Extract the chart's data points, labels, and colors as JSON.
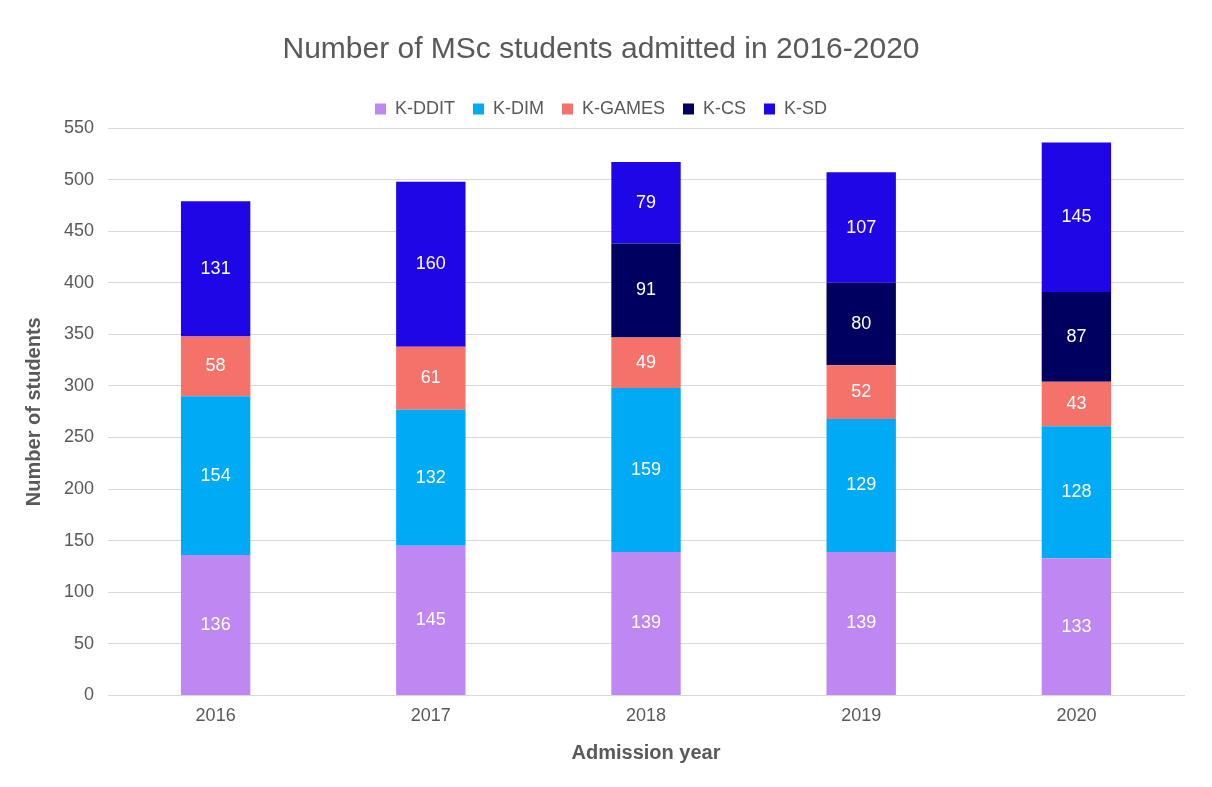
{
  "chart_data": {
    "type": "bar",
    "title": "Number of MSc students admitted in 2016-2020",
    "xlabel": "Admission year",
    "ylabel": "Number of students",
    "categories": [
      "2016",
      "2017",
      "2018",
      "2019",
      "2020"
    ],
    "series": [
      {
        "name": "K-DDIT",
        "color": "#bf87f2",
        "values": [
          136,
          145,
          139,
          139,
          133
        ]
      },
      {
        "name": "K-DIM",
        "color": "#00aaf5",
        "values": [
          154,
          132,
          159,
          129,
          128
        ]
      },
      {
        "name": "K-GAMES",
        "color": "#f4726a",
        "values": [
          58,
          61,
          49,
          52,
          43
        ]
      },
      {
        "name": "K-CS",
        "color": "#000060",
        "values": [
          null,
          null,
          91,
          80,
          87
        ]
      },
      {
        "name": "K-SD",
        "color": "#1f06e6",
        "values": [
          131,
          160,
          79,
          107,
          145
        ]
      }
    ],
    "stacked": true,
    "ylim": [
      0,
      550
    ],
    "yticks": [
      0,
      50,
      100,
      150,
      200,
      250,
      300,
      350,
      400,
      450,
      500,
      550
    ],
    "grid": "y",
    "legend": "top",
    "data_labels": true
  }
}
